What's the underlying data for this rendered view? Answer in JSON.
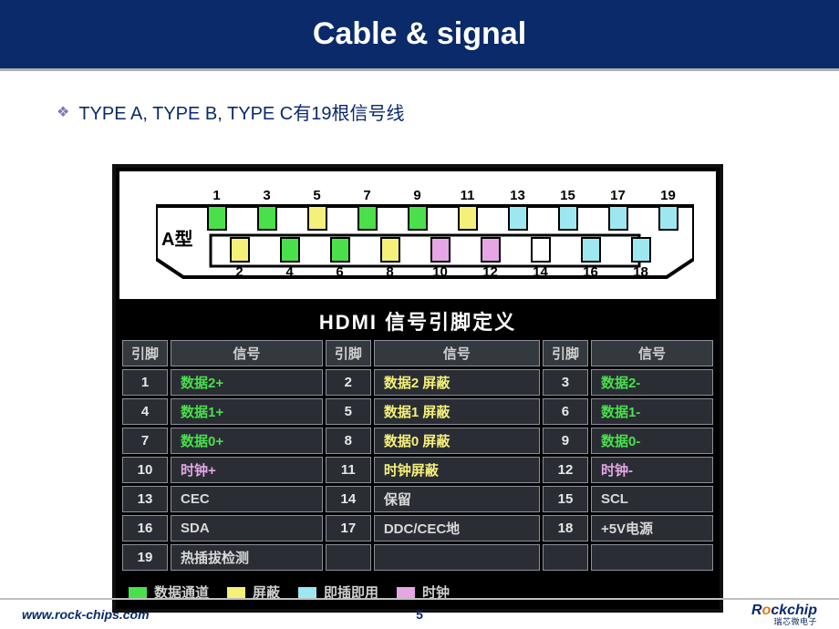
{
  "slide": {
    "title": "Cable & signal",
    "bullet": "TYPE A, TYPE B, TYPE C有19根信号线",
    "page_number": "5"
  },
  "footer": {
    "url": "www.rock-chips.com",
    "brand": "Rockchip",
    "brand_sub": "瑞芯微电子"
  },
  "colors": {
    "data_channel": "#49e04c",
    "shield": "#f5f07a",
    "hotplug": "#9de8f0",
    "clock": "#e6a6e6",
    "white": "#ffffff",
    "title_bg": "#0a2a6a",
    "table_cell": "#2a2e34",
    "table_border": "#8c9099"
  },
  "connector": {
    "label": "A型",
    "top_pins": [
      1,
      3,
      5,
      7,
      9,
      11,
      13,
      15,
      17,
      19
    ],
    "bottom_pins": [
      2,
      4,
      6,
      8,
      10,
      12,
      14,
      16,
      18
    ],
    "pin_colors": {
      "1": "#49e04c",
      "2": "#f5f07a",
      "3": "#49e04c",
      "4": "#49e04c",
      "5": "#f5f07a",
      "6": "#49e04c",
      "7": "#49e04c",
      "8": "#f5f07a",
      "9": "#49e04c",
      "10": "#e6a6e6",
      "11": "#f5f07a",
      "12": "#e6a6e6",
      "13": "#9de8f0",
      "14": "#ffffff",
      "15": "#9de8f0",
      "16": "#9de8f0",
      "17": "#9de8f0",
      "18": "#9de8f0",
      "19": "#9de8f0"
    }
  },
  "pin_table": {
    "title": "HDMI  信号引脚定义",
    "headers": [
      "引脚",
      "信号",
      "引脚",
      "信号",
      "引脚",
      "信号"
    ],
    "rows": [
      [
        {
          "n": "1",
          "s": "数据2+",
          "c": "#49e04c"
        },
        {
          "n": "2",
          "s": "数据2 屏蔽",
          "c": "#f5f07a"
        },
        {
          "n": "3",
          "s": "数据2-",
          "c": "#49e04c"
        }
      ],
      [
        {
          "n": "4",
          "s": "数据1+",
          "c": "#49e04c"
        },
        {
          "n": "5",
          "s": "数据1 屏蔽",
          "c": "#f5f07a"
        },
        {
          "n": "6",
          "s": "数据1-",
          "c": "#49e04c"
        }
      ],
      [
        {
          "n": "7",
          "s": "数据0+",
          "c": "#49e04c"
        },
        {
          "n": "8",
          "s": "数据0 屏蔽",
          "c": "#f5f07a"
        },
        {
          "n": "9",
          "s": "数据0-",
          "c": "#49e04c"
        }
      ],
      [
        {
          "n": "10",
          "s": "时钟+",
          "c": "#e6a6e6"
        },
        {
          "n": "11",
          "s": "时钟屏蔽",
          "c": "#f5f07a"
        },
        {
          "n": "12",
          "s": "时钟-",
          "c": "#e6a6e6"
        }
      ],
      [
        {
          "n": "13",
          "s": "CEC",
          "c": "#d8d8d8"
        },
        {
          "n": "14",
          "s": "保留",
          "c": "#d8d8d8"
        },
        {
          "n": "15",
          "s": "SCL",
          "c": "#d8d8d8"
        }
      ],
      [
        {
          "n": "16",
          "s": "SDA",
          "c": "#d8d8d8"
        },
        {
          "n": "17",
          "s": "DDC/CEC地",
          "c": "#d8d8d8"
        },
        {
          "n": "18",
          "s": "+5V电源",
          "c": "#d8d8d8"
        }
      ],
      [
        {
          "n": "19",
          "s": "热插拔检测",
          "c": "#d8d8d8"
        },
        null,
        null
      ]
    ]
  },
  "legend": [
    {
      "color": "#49e04c",
      "label": "数据通道"
    },
    {
      "color": "#f5f07a",
      "label": "屏蔽"
    },
    {
      "color": "#9de8f0",
      "label": "即插即用"
    },
    {
      "color": "#e6a6e6",
      "label": "时钟"
    }
  ]
}
